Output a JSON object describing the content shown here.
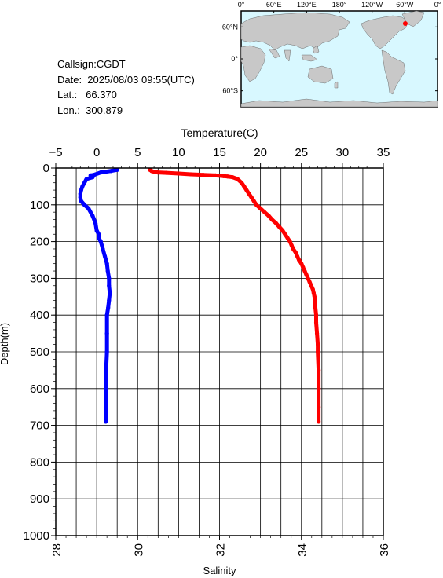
{
  "info": {
    "callsign": "Callsign:CGDT",
    "date": "Date:  2025/08/03 09:55(UTC)",
    "lat": "Lat.:   66.370",
    "lon": "Lon.:  300.879"
  },
  "map": {
    "lon_labels": [
      "0°",
      "60°E",
      "120°E",
      "180°",
      "120°W",
      "60°W",
      "0°"
    ],
    "lat_labels": [
      "60°N",
      "0°",
      "60°S"
    ],
    "ocean_color": "#d8f8ff",
    "land_color": "#c8c8c8",
    "station_color": "#ff0000",
    "station": {
      "lon": 300.879,
      "lat": 66.37
    }
  },
  "chart_data": {
    "type": "line",
    "title": "",
    "top_axis": {
      "label": "Temperature(C)",
      "range": [
        -5,
        35
      ],
      "ticks": [
        "-5",
        "0",
        "5",
        "10",
        "15",
        "20",
        "25",
        "30",
        "35"
      ]
    },
    "bottom_axis": {
      "label": "Salinity",
      "range": [
        28,
        36
      ],
      "ticks": [
        "28",
        "30",
        "32",
        "34",
        "36"
      ]
    },
    "y_axis": {
      "label": "Depth(m)",
      "range": [
        0,
        1000
      ],
      "inverted": true,
      "ticks": [
        "0",
        "100",
        "200",
        "300",
        "400",
        "500",
        "600",
        "700",
        "800",
        "900",
        "1000"
      ]
    },
    "grid": true,
    "series": [
      {
        "color": "#ff0000",
        "axis": "temperature",
        "points": [
          [
            6.5,
            5
          ],
          [
            6.7,
            8
          ],
          [
            7.0,
            10
          ],
          [
            7.5,
            12
          ],
          [
            8.5,
            13
          ],
          [
            10.0,
            15
          ],
          [
            11.5,
            17
          ],
          [
            13.0,
            18.5
          ],
          [
            14.5,
            20
          ],
          [
            15.5,
            22
          ],
          [
            16.0,
            23
          ],
          [
            16.6,
            25
          ],
          [
            17.2,
            30
          ],
          [
            17.7,
            40
          ],
          [
            18.0,
            50
          ],
          [
            18.3,
            60
          ],
          [
            18.6,
            70
          ],
          [
            18.9,
            80
          ],
          [
            19.2,
            90
          ],
          [
            19.5,
            100
          ],
          [
            20.0,
            110
          ],
          [
            20.5,
            120
          ],
          [
            21.0,
            130
          ],
          [
            21.4,
            140
          ],
          [
            21.9,
            150
          ],
          [
            22.3,
            160
          ],
          [
            22.7,
            170
          ],
          [
            23.0,
            180
          ],
          [
            23.3,
            190
          ],
          [
            23.6,
            200
          ],
          [
            23.8,
            210
          ],
          [
            24.0,
            220
          ],
          [
            24.3,
            230
          ],
          [
            24.5,
            240
          ],
          [
            24.7,
            250
          ],
          [
            25.0,
            260
          ],
          [
            25.2,
            270
          ],
          [
            25.4,
            280
          ],
          [
            25.6,
            290
          ],
          [
            25.8,
            300
          ],
          [
            26.0,
            310
          ],
          [
            26.2,
            320
          ],
          [
            26.4,
            330
          ],
          [
            26.5,
            340
          ],
          [
            26.6,
            350
          ],
          [
            26.7,
            380
          ],
          [
            26.8,
            400
          ],
          [
            26.8,
            420
          ],
          [
            26.9,
            450
          ],
          [
            27.0,
            480
          ],
          [
            27.0,
            500
          ],
          [
            27.1,
            550
          ],
          [
            27.1,
            600
          ],
          [
            27.1,
            650
          ],
          [
            27.1,
            690
          ]
        ]
      },
      {
        "color": "#0000ff",
        "axis": "salinity",
        "points": [
          [
            29.5,
            5
          ],
          [
            29.35,
            8
          ],
          [
            29.1,
            12
          ],
          [
            28.95,
            18
          ],
          [
            28.85,
            20
          ],
          [
            28.9,
            25
          ],
          [
            28.75,
            30
          ],
          [
            28.7,
            40
          ],
          [
            28.65,
            50
          ],
          [
            28.62,
            60
          ],
          [
            28.6,
            70
          ],
          [
            28.6,
            80
          ],
          [
            28.62,
            90
          ],
          [
            28.7,
            100
          ],
          [
            28.8,
            110
          ],
          [
            28.9,
            130
          ],
          [
            28.97,
            150
          ],
          [
            29.0,
            170
          ],
          [
            29.05,
            180
          ],
          [
            29.05,
            190
          ],
          [
            29.1,
            200
          ],
          [
            29.15,
            220
          ],
          [
            29.2,
            240
          ],
          [
            29.25,
            260
          ],
          [
            29.27,
            280
          ],
          [
            29.3,
            300
          ],
          [
            29.3,
            320
          ],
          [
            29.32,
            340
          ],
          [
            29.3,
            360
          ],
          [
            29.28,
            380
          ],
          [
            29.25,
            400
          ],
          [
            29.25,
            450
          ],
          [
            29.25,
            500
          ],
          [
            29.23,
            550
          ],
          [
            29.22,
            600
          ],
          [
            29.22,
            650
          ],
          [
            29.22,
            690
          ]
        ]
      }
    ]
  }
}
